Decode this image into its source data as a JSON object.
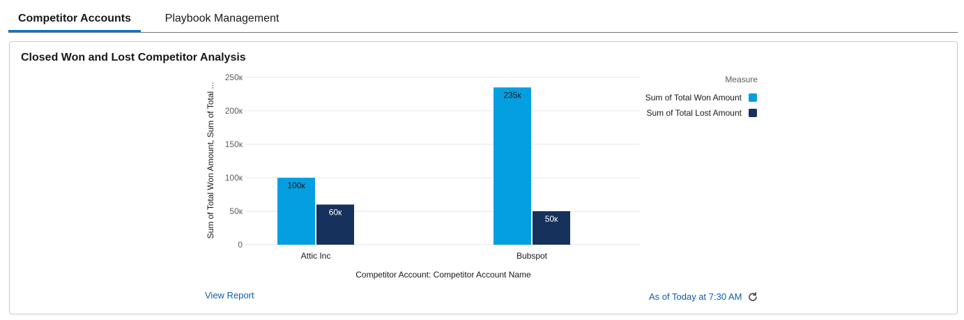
{
  "tabs": [
    {
      "label": "Competitor Accounts",
      "active": true
    },
    {
      "label": "Playbook Management",
      "active": false
    }
  ],
  "card": {
    "title": "Closed Won and Lost Competitor Analysis",
    "view_report_label": "View Report",
    "as_of_label": "As of Today at 7:30 AM",
    "refresh_icon": "refresh-icon"
  },
  "colors": {
    "accent": "#0176d3",
    "link": "#0b5cab",
    "won": "#049fe0",
    "lost": "#16325c"
  },
  "chart_data": {
    "type": "bar",
    "categories": [
      "Attic Inc",
      "Bubspot"
    ],
    "series": [
      {
        "name": "Sum of Total Won Amount",
        "values": [
          100000,
          235000
        ],
        "labels": [
          "100к",
          "235к"
        ]
      },
      {
        "name": "Sum of Total Lost Amount",
        "values": [
          60000,
          50000
        ],
        "labels": [
          "60к",
          "50к"
        ]
      }
    ],
    "xlabel": "Competitor Account: Competitor Account Name",
    "ylabel": "Sum of Total Won Amount, Sum of Total ...",
    "ylim": [
      0,
      250000
    ],
    "yticks": [
      0,
      50000,
      100000,
      150000,
      200000,
      250000
    ],
    "ytick_labels": [
      "0",
      "50к",
      "100к",
      "150к",
      "200к",
      "250к"
    ],
    "grid": true,
    "legend": {
      "title": "Measure",
      "position": "top-right"
    }
  }
}
